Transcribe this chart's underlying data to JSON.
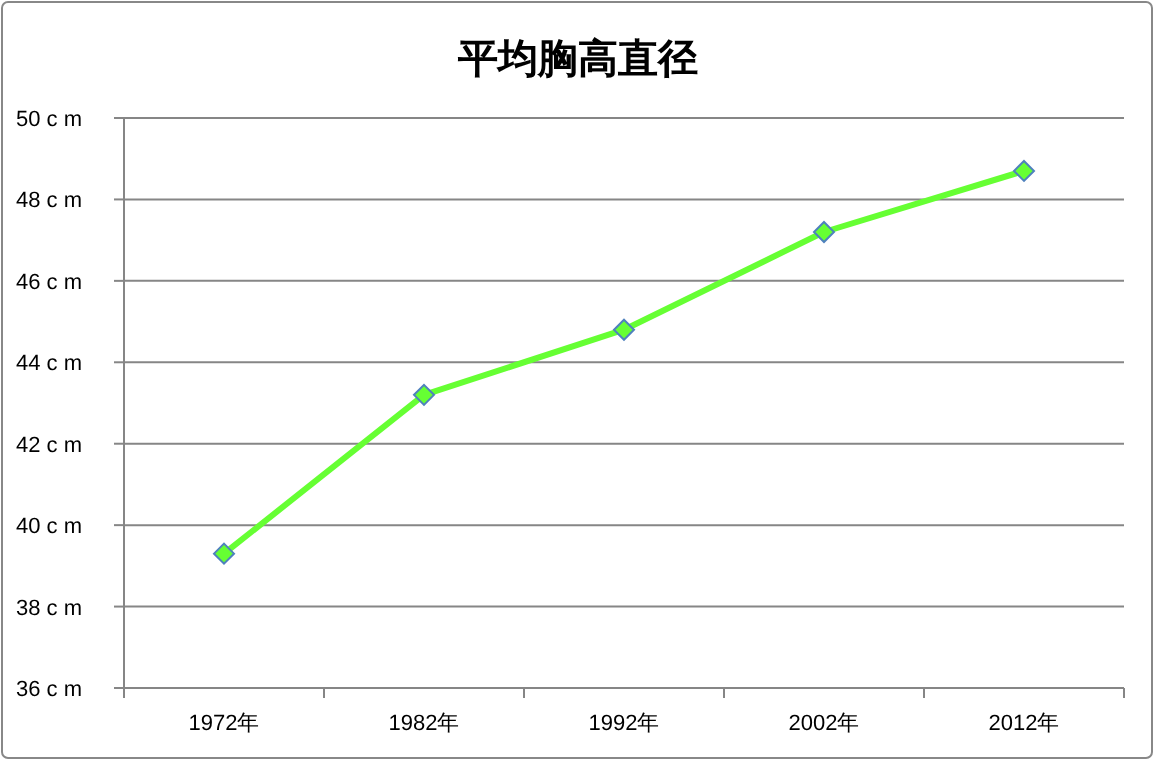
{
  "chart_data": {
    "type": "line",
    "title": "平均胸高直径",
    "categories": [
      "1972年",
      "1982年",
      "1992年",
      "2002年",
      "2012年"
    ],
    "series": [
      {
        "color": "#66ff33",
        "values": [
          39.3,
          43.2,
          44.8,
          47.2,
          48.7
        ]
      }
    ],
    "ylim": [
      36,
      50
    ],
    "yticks": [
      {
        "value": 36,
        "label": "36 c m"
      },
      {
        "value": 38,
        "label": "38 c m"
      },
      {
        "value": 40,
        "label": "40 c m"
      },
      {
        "value": 42,
        "label": "42 c m"
      },
      {
        "value": 44,
        "label": "44 c m"
      },
      {
        "value": 46,
        "label": "46 c m"
      },
      {
        "value": 48,
        "label": "48 c m"
      },
      {
        "value": 50,
        "label": "50 c m"
      }
    ],
    "grid": "y",
    "marker": "diamond",
    "line_style": "solid"
  }
}
